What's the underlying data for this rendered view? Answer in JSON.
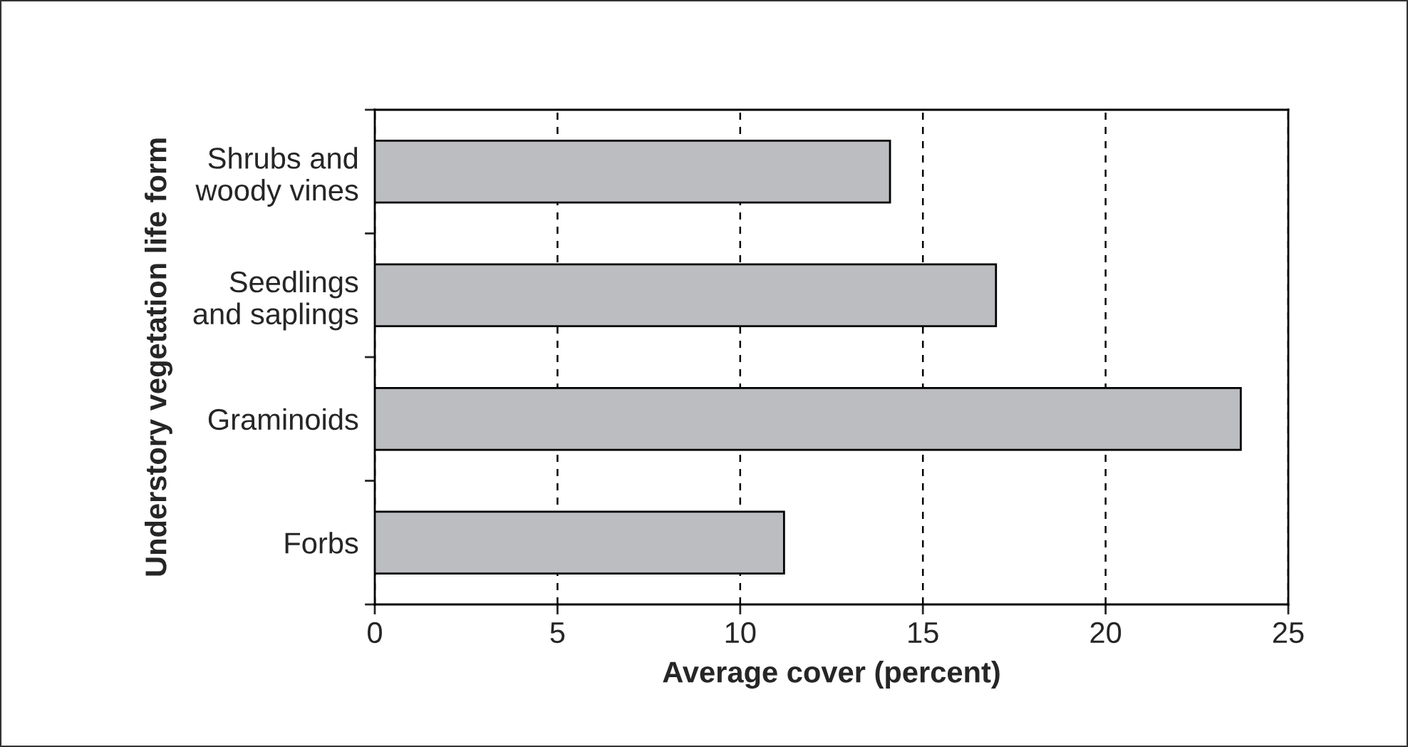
{
  "chart_data": {
    "type": "bar",
    "orientation": "horizontal",
    "categories": [
      "Shrubs and\nwoody vines",
      "Seedlings\nand saplings",
      "Graminoids",
      "Forbs"
    ],
    "values": [
      14.1,
      17.0,
      23.7,
      11.2
    ],
    "color": "#bcbdc1",
    "xlabel": "Average cover (percent)",
    "ylabel": "Understory vegetation life form",
    "xlim": [
      0,
      25
    ],
    "xticks": [
      0,
      5,
      10,
      15,
      20,
      25
    ],
    "grid": "x",
    "line_style": "dashed"
  }
}
